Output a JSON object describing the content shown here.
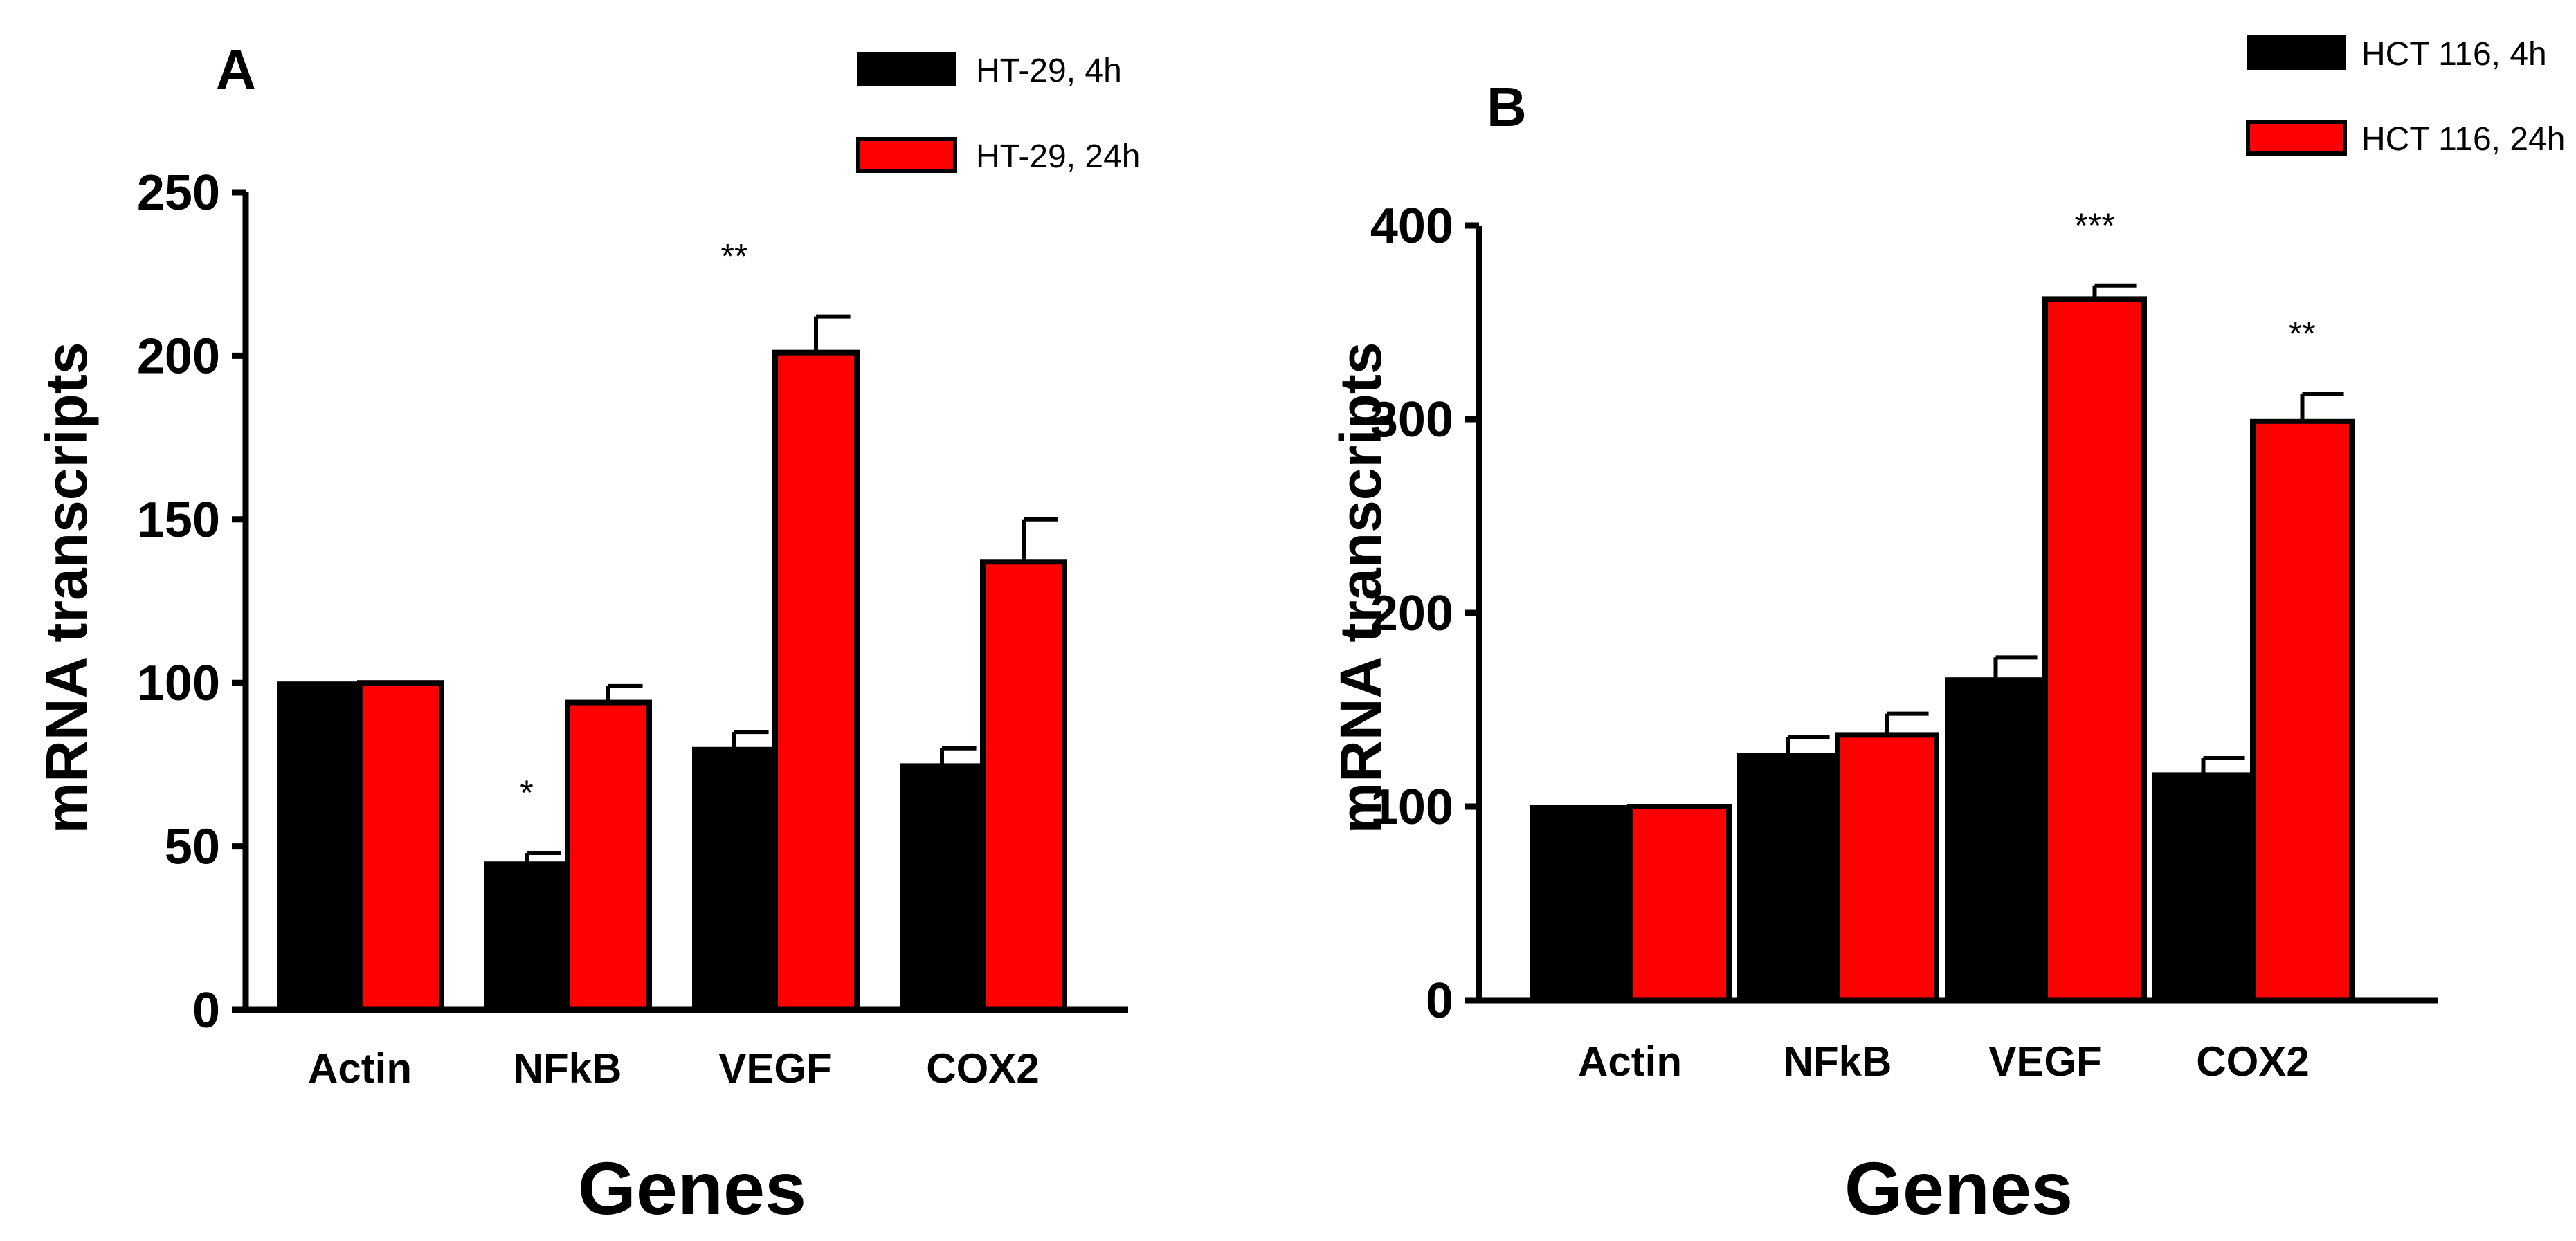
{
  "figure": {
    "panels": [
      "A",
      "B"
    ]
  },
  "chart_data": [
    {
      "panel": "A",
      "type": "bar",
      "title": "",
      "xlabel": "Genes",
      "ylabel": "mRNA transcripts",
      "categories": [
        "Actin",
        "NFkB",
        "VEGF",
        "COX2"
      ],
      "ylim": [
        0,
        250
      ],
      "yticks": [
        "0",
        "50",
        "100",
        "150",
        "200",
        "250"
      ],
      "series": [
        {
          "name": "HT-29, 4h",
          "color": "#000000",
          "values": [
            100,
            45,
            80,
            75
          ],
          "errors": [
            0,
            3,
            5,
            5
          ]
        },
        {
          "name": "HT-29, 24h",
          "color": "#ff0000",
          "values": [
            100,
            94,
            201,
            137
          ],
          "errors": [
            0,
            5,
            11,
            13
          ]
        }
      ],
      "significance": [
        {
          "category": "NFkB",
          "series": 0,
          "label": "*"
        },
        {
          "category": "VEGF",
          "series": 0,
          "label": "**"
        }
      ],
      "legend_position": "top-right"
    },
    {
      "panel": "B",
      "type": "bar",
      "title": "",
      "xlabel": "Genes",
      "ylabel": "mRNA transcripts",
      "categories": [
        "Actin",
        "NFkB",
        "VEGF",
        "COX2"
      ],
      "ylim": [
        0,
        400
      ],
      "yticks": [
        "0",
        "100",
        "200",
        "300",
        "400"
      ],
      "series": [
        {
          "name": "HCT 116, 4h",
          "color": "#000000",
          "values": [
            100,
            127,
            166,
            117
          ],
          "errors": [
            0,
            9,
            11,
            8
          ]
        },
        {
          "name": "HCT 116, 24h",
          "color": "#ff0000",
          "values": [
            100,
            137,
            362,
            299
          ],
          "errors": [
            0,
            11,
            7,
            14
          ]
        }
      ],
      "significance": [
        {
          "category": "VEGF",
          "series": 1,
          "label": "***"
        },
        {
          "category": "COX2",
          "series": 1,
          "label": "**"
        }
      ],
      "legend_position": "top-right"
    }
  ]
}
